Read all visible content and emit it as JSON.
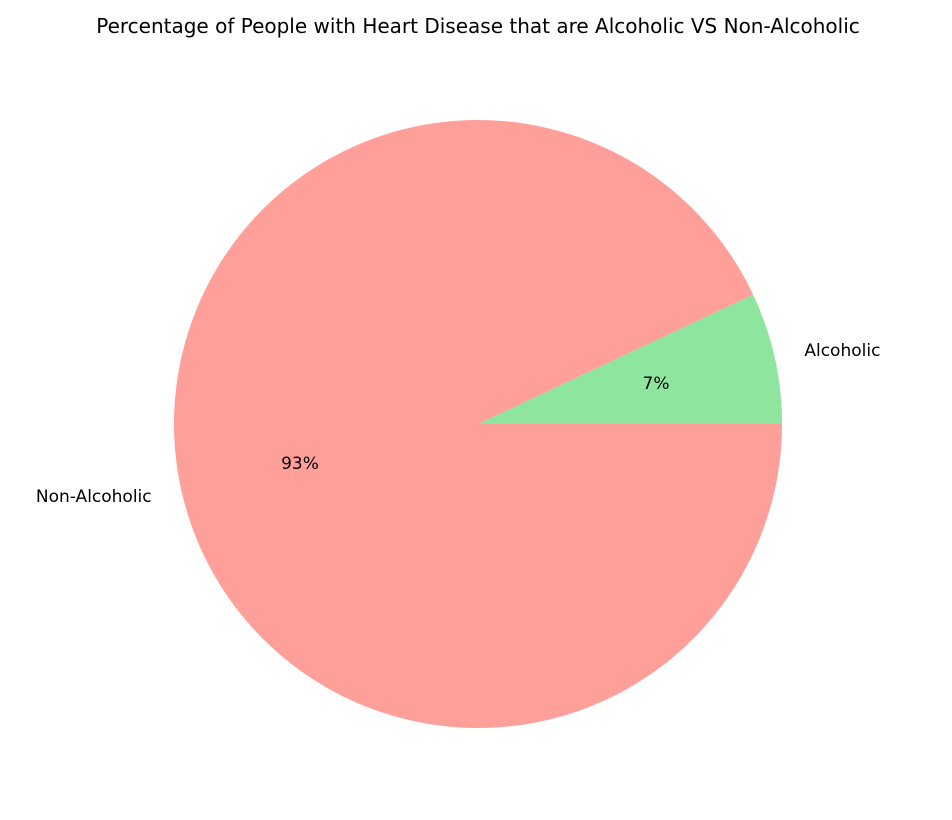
{
  "chart_data": {
    "type": "pie",
    "title": "Percentage of People with Heart Disease that are Alcoholic VS Non-Alcoholic",
    "slices": [
      {
        "label": "Alcoholic",
        "value": 7,
        "pct_label": "7%",
        "color": "#8de59e"
      },
      {
        "label": "Non-Alcoholic",
        "value": 93,
        "pct_label": "93%",
        "color": "#ff9f9a"
      }
    ],
    "start_angle_deg": 0,
    "direction": "counterclockwise"
  }
}
